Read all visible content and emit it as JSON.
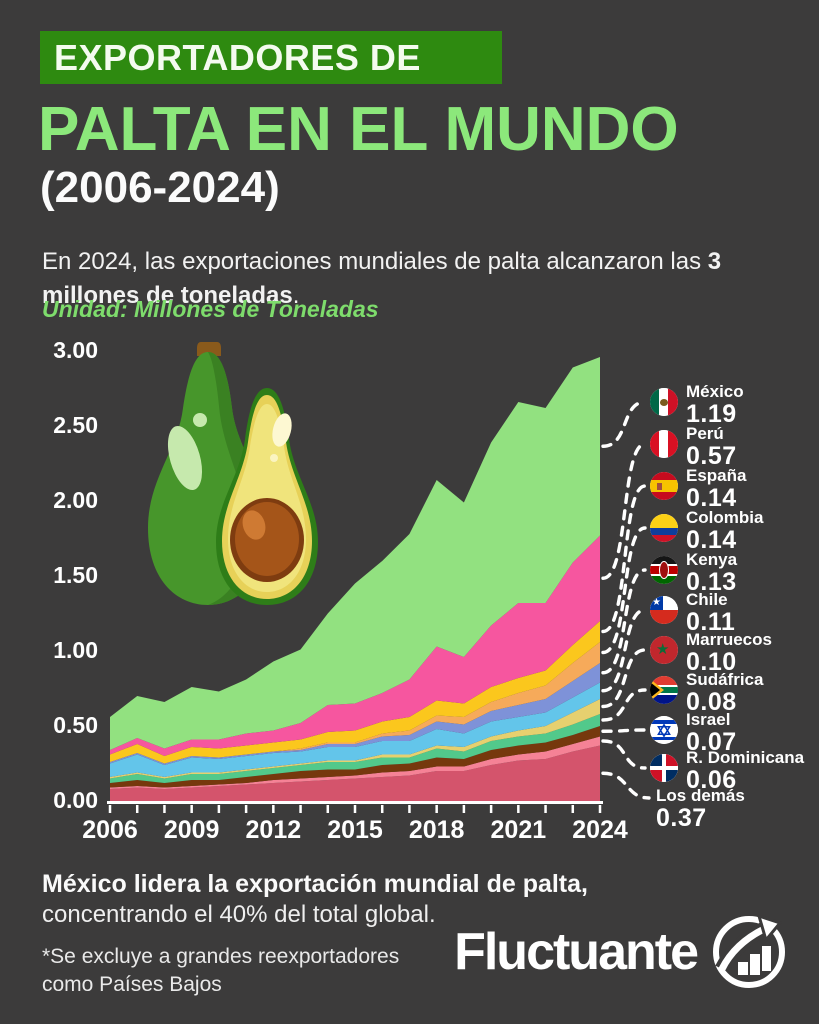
{
  "page": {
    "background": "#3c3b3b"
  },
  "header": {
    "kicker": "EXPORTADORES DE",
    "title": "PALTA EN EL MUNDO",
    "subtitle": "(2006-2024)",
    "intro_r1": "En 2024, las exportaciones mundiales de palta alcanzaron las ",
    "intro_b1": "3",
    "intro_b2": "millones de toneladas",
    "intro_end": ".",
    "unit_label": "Unidad: Millones de Toneladas",
    "kicker_bg": "#2e8a10",
    "title_color": "#8ce87b"
  },
  "chart_data": {
    "type": "area",
    "stacked": true,
    "title": "Exportadores de palta en el mundo (2006-2024)",
    "ylabel": "Millones de Toneladas",
    "ylim": [
      0,
      3.0
    ],
    "grid": false,
    "legend_position": "right",
    "x": [
      2006,
      2007,
      2008,
      2009,
      2010,
      2011,
      2012,
      2013,
      2014,
      2015,
      2016,
      2017,
      2018,
      2019,
      2020,
      2021,
      2022,
      2023,
      2024
    ],
    "x_tick_labels": [
      "2006",
      "2009",
      "2012",
      "2015",
      "2018",
      "2021",
      "2024"
    ],
    "y_tick_labels": [
      "0.00",
      "0.50",
      "1.00",
      "1.50",
      "2.00",
      "2.50",
      "3.00"
    ],
    "series": [
      {
        "key": "los_demas",
        "name": "Los demás",
        "color": "#d4546c",
        "value_2024": "0.37",
        "values": [
          0.08,
          0.09,
          0.08,
          0.09,
          0.1,
          0.11,
          0.12,
          0.13,
          0.14,
          0.15,
          0.16,
          0.17,
          0.2,
          0.2,
          0.24,
          0.27,
          0.28,
          0.33,
          0.37
        ]
      },
      {
        "key": "r_dominicana",
        "name": "R. Dominicana",
        "color": "#f58296",
        "value_2024": "0.06",
        "values": [
          0.01,
          0.01,
          0.01,
          0.01,
          0.01,
          0.01,
          0.02,
          0.02,
          0.02,
          0.02,
          0.03,
          0.03,
          0.03,
          0.03,
          0.04,
          0.04,
          0.05,
          0.05,
          0.06
        ]
      },
      {
        "key": "israel",
        "name": "Israel",
        "color": "#76380d",
        "value_2024": "0.07",
        "values": [
          0.03,
          0.04,
          0.03,
          0.04,
          0.03,
          0.04,
          0.04,
          0.05,
          0.05,
          0.04,
          0.05,
          0.05,
          0.06,
          0.05,
          0.06,
          0.06,
          0.06,
          0.06,
          0.07
        ]
      },
      {
        "key": "sudafrica",
        "name": "Sudáfrica",
        "color": "#52c98b",
        "value_2024": "0.08",
        "values": [
          0.03,
          0.04,
          0.03,
          0.04,
          0.04,
          0.04,
          0.04,
          0.04,
          0.05,
          0.05,
          0.05,
          0.04,
          0.06,
          0.05,
          0.06,
          0.06,
          0.06,
          0.07,
          0.08
        ]
      },
      {
        "key": "marruecos",
        "name": "Marruecos",
        "color": "#e6d06f",
        "value_2024": "0.10",
        "values": [
          0.01,
          0.01,
          0.01,
          0.01,
          0.01,
          0.01,
          0.01,
          0.01,
          0.01,
          0.01,
          0.02,
          0.02,
          0.02,
          0.03,
          0.03,
          0.04,
          0.05,
          0.08,
          0.1
        ]
      },
      {
        "key": "chile",
        "name": "Chile",
        "color": "#63c5ea",
        "value_2024": "0.11",
        "values": [
          0.09,
          0.12,
          0.08,
          0.1,
          0.09,
          0.09,
          0.09,
          0.08,
          0.09,
          0.09,
          0.09,
          0.09,
          0.11,
          0.09,
          0.1,
          0.09,
          0.09,
          0.1,
          0.11
        ]
      },
      {
        "key": "kenya",
        "name": "Kenya",
        "color": "#7e92d8",
        "value_2024": "0.13",
        "values": [
          0.01,
          0.01,
          0.01,
          0.01,
          0.01,
          0.01,
          0.01,
          0.01,
          0.02,
          0.02,
          0.03,
          0.04,
          0.05,
          0.06,
          0.07,
          0.08,
          0.09,
          0.11,
          0.13
        ]
      },
      {
        "key": "colombia",
        "name": "Colombia",
        "color": "#f6aa5a",
        "value_2024": "0.14",
        "values": [
          0.0,
          0.0,
          0.0,
          0.0,
          0.0,
          0.0,
          0.0,
          0.01,
          0.01,
          0.01,
          0.02,
          0.03,
          0.04,
          0.05,
          0.06,
          0.08,
          0.09,
          0.12,
          0.14
        ]
      },
      {
        "key": "espana",
        "name": "España",
        "color": "#fbc71d",
        "value_2024": "0.14",
        "values": [
          0.05,
          0.06,
          0.05,
          0.06,
          0.06,
          0.06,
          0.06,
          0.06,
          0.07,
          0.08,
          0.08,
          0.09,
          0.1,
          0.09,
          0.1,
          0.1,
          0.1,
          0.12,
          0.14
        ]
      },
      {
        "key": "peru",
        "name": "Perú",
        "color": "#f6569f",
        "value_2024": "0.57",
        "values": [
          0.03,
          0.04,
          0.05,
          0.05,
          0.06,
          0.08,
          0.08,
          0.11,
          0.18,
          0.18,
          0.19,
          0.25,
          0.36,
          0.31,
          0.41,
          0.5,
          0.45,
          0.55,
          0.57
        ]
      },
      {
        "key": "mexico",
        "name": "México",
        "color": "#92e180",
        "value_2024": "1.19",
        "values": [
          0.22,
          0.28,
          0.31,
          0.35,
          0.32,
          0.36,
          0.46,
          0.49,
          0.61,
          0.8,
          0.88,
          0.97,
          1.11,
          1.03,
          1.22,
          1.34,
          1.3,
          1.3,
          1.19
        ]
      }
    ]
  },
  "legend": {
    "entries": [
      {
        "name": "México",
        "value": "1.19",
        "series_key": "mexico",
        "flag": "mexico-flag"
      },
      {
        "name": "Perú",
        "value": "0.57",
        "series_key": "peru",
        "flag": "peru-flag"
      },
      {
        "name": "España",
        "value": "0.14",
        "series_key": "espana",
        "flag": "spain-flag"
      },
      {
        "name": "Colombia",
        "value": "0.14",
        "series_key": "colombia",
        "flag": "colombia-flag"
      },
      {
        "name": "Kenya",
        "value": "0.13",
        "series_key": "kenya",
        "flag": "kenya-flag"
      },
      {
        "name": "Chile",
        "value": "0.11",
        "series_key": "chile",
        "flag": "chile-flag"
      },
      {
        "name": "Marruecos",
        "value": "0.10",
        "series_key": "marruecos",
        "flag": "morocco-flag"
      },
      {
        "name": "Sudáfrica",
        "value": "0.08",
        "series_key": "sudafrica",
        "flag": "south-africa-flag"
      },
      {
        "name": "Israel",
        "value": "0.07",
        "series_key": "israel",
        "flag": "israel-flag"
      },
      {
        "name": "R. Dominicana",
        "value": "0.06",
        "series_key": "r_dominicana",
        "flag": "dominican-republic-flag"
      },
      {
        "name": "Los demás",
        "value": "0.37",
        "series_key": "los_demas",
        "flag": null
      }
    ]
  },
  "footer": {
    "highlight_bold": "México lidera la exportación mundial de palta,",
    "highlight_regular": "concentrando el 40% del total global.",
    "footnote_line1": "*Se excluye a grandes reexportadores",
    "footnote_line2": "como Países Bajos",
    "brand": "Fluctuante"
  }
}
